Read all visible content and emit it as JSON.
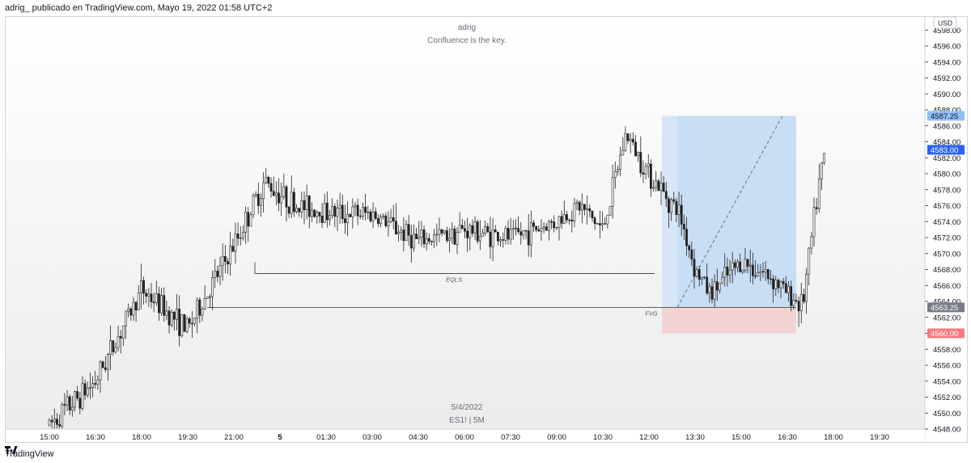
{
  "header": {
    "attribution": "adrig_ publicado en TradingView.com, Mayo 19, 2022 01:58 UTC+2"
  },
  "footer": {
    "brand": "TradingView"
  },
  "watermark": {
    "author": "adrig",
    "tagline": "Confluence is the key.",
    "date": "5/4/2022",
    "symbol": "ES1! | 5M"
  },
  "chart_data": {
    "type": "candlestick",
    "currency_badge": "USD",
    "y_range": [
      4547,
      4600
    ],
    "y_ticks": [
      "4598.00",
      "4596.00",
      "4594.00",
      "4592.00",
      "4590.00",
      "4588.00",
      "4586.00",
      "4584.00",
      "4582.00",
      "4580.00",
      "4578.00",
      "4576.00",
      "4574.00",
      "4572.00",
      "4570.00",
      "4568.00",
      "4566.00",
      "4564.00",
      "4562.00",
      "4560.00",
      "4558.00",
      "4556.00",
      "4554.00",
      "4552.00",
      "4550.00",
      "4548.00"
    ],
    "x_ticks": [
      "15:00",
      "16:30",
      "18:00",
      "19:30",
      "21:00",
      "5",
      "01:30",
      "03:00",
      "04:30",
      "06:00",
      "07:30",
      "09:00",
      "10:30",
      "12:00",
      "13:30",
      "15:00",
      "16:30",
      "18:00",
      "19:30"
    ],
    "price_path": [
      [
        "15:00",
        4548.5
      ],
      [
        "16:30",
        4554
      ],
      [
        "18:00",
        4565.5
      ],
      [
        "19:30",
        4560.5
      ],
      [
        "21:00",
        4571
      ],
      [
        "22:00",
        4579
      ],
      [
        "23:00",
        4576
      ],
      [
        "00:30",
        4575
      ],
      [
        "01:30",
        4575
      ],
      [
        "03:00",
        4571.5
      ],
      [
        "04:30",
        4573
      ],
      [
        "06:00",
        4572
      ],
      [
        "07:30",
        4574
      ],
      [
        "08:15",
        4576
      ],
      [
        "09:00",
        4573
      ],
      [
        "09:45",
        4585
      ],
      [
        "10:30",
        4580
      ],
      [
        "11:30",
        4575
      ],
      [
        "12:00",
        4568
      ],
      [
        "12:30",
        4565
      ],
      [
        "13:30",
        4569
      ],
      [
        "14:30",
        4567
      ],
      [
        "15:00",
        4565
      ],
      [
        "15:30",
        4563.5
      ],
      [
        "16:00",
        4578
      ],
      [
        "16:15",
        4583
      ]
    ],
    "levels": [
      {
        "label": "EQLS.",
        "price": 4567.5
      },
      {
        "label": "FVG",
        "price": 4563.25
      }
    ],
    "position": {
      "entry": 4563.25,
      "target": 4587.25,
      "stop": 4560.0
    },
    "price_labels": [
      {
        "value": "4587.25",
        "color": "#90bff9",
        "text_color": "#131722"
      },
      {
        "value": "4583.00",
        "color": "#2962ff",
        "text_color": "#ffffff"
      },
      {
        "value": "4563.25",
        "color": "#787b86",
        "text_color": "#ffffff"
      },
      {
        "value": "4560.00",
        "color": "#f77c80",
        "text_color": "#ffffff"
      }
    ]
  }
}
